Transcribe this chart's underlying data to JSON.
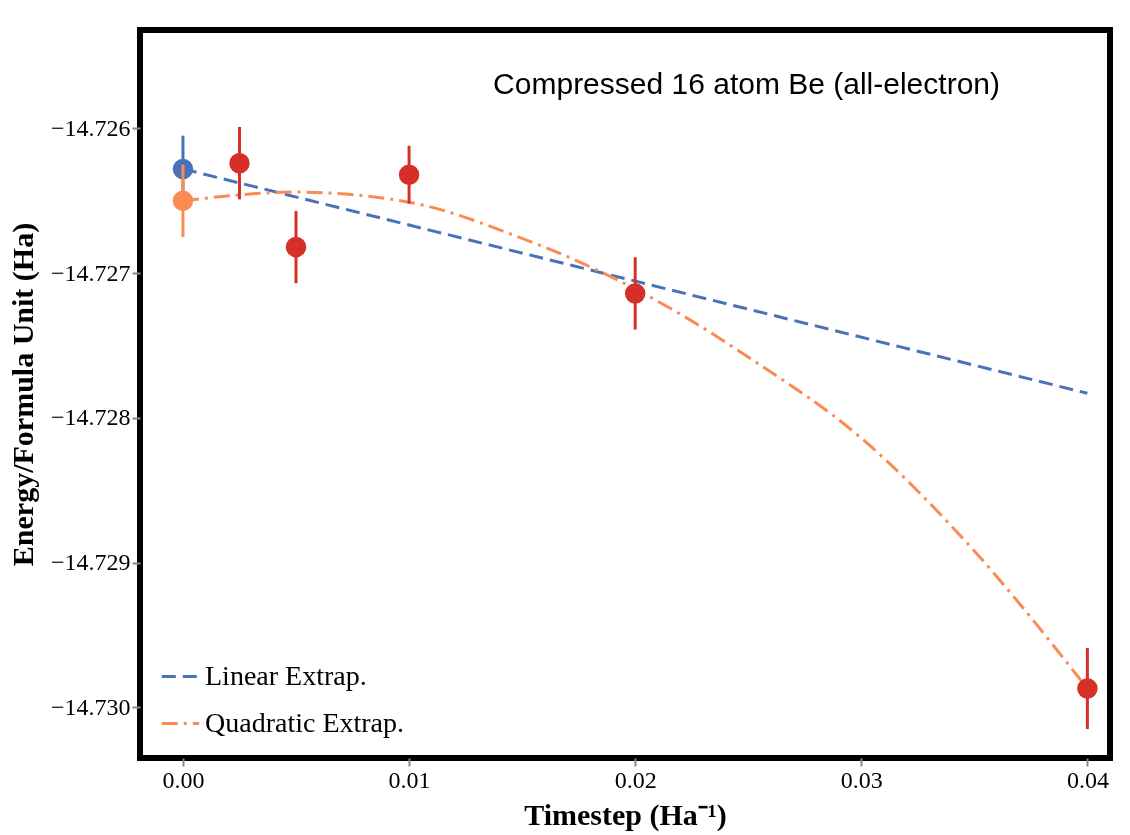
{
  "chart_data": {
    "type": "line",
    "xlabel": "Timestep (Ha⁻¹)",
    "ylabel": "Energy/Formula Unit (Ha)",
    "annotations": [
      "Compressed 16 atom Be (all-electron)"
    ],
    "xlim": [
      -0.0019,
      0.041
    ],
    "ylim": [
      -14.73035,
      -14.72532
    ],
    "xticks": [
      {
        "value": 0,
        "label": "0.00"
      },
      {
        "value": 0.01,
        "label": "0.01"
      },
      {
        "value": 0.02,
        "label": "0.02"
      },
      {
        "value": 0.03,
        "label": "0.03"
      },
      {
        "value": 0.04,
        "label": "0.04"
      }
    ],
    "yticks": [
      {
        "value": -14.73,
        "label": "−14.730"
      },
      {
        "value": -14.729,
        "label": "−14.729"
      },
      {
        "value": -14.728,
        "label": "−14.728"
      },
      {
        "value": -14.727,
        "label": "−14.727"
      },
      {
        "value": -14.726,
        "label": "−14.726"
      }
    ],
    "grid": false,
    "legend": "bottom left",
    "series": [
      {
        "name": "Linear Extrap.",
        "line_style": "dashed",
        "color": "#4a72b8",
        "x": [
          0,
          0.04
        ],
        "values": [
          -14.72628,
          -14.72783
        ]
      },
      {
        "name": "Quadratic Extrap.",
        "line_style": "dashdot",
        "color": "#f98c55",
        "x": [
          0,
          0.005,
          0.01,
          0.015,
          0.0175,
          0.0225,
          0.025,
          0.03,
          0.035,
          0.04
        ],
        "values": [
          -14.7265,
          -14.72644,
          -14.72651,
          -14.72676,
          -14.72692,
          -14.72733,
          -14.72758,
          -14.72814,
          -14.72892,
          -14.72987
        ]
      },
      {
        "type": "scatter",
        "marker": "circle",
        "color": "#d62f27",
        "x": [
          0.0025,
          0.005,
          0.01,
          0.02,
          0.04
        ],
        "values": [
          -14.72624,
          -14.72682,
          -14.72632,
          -14.72714,
          -14.72987
        ],
        "errors": [
          0.00025,
          0.00025,
          0.0002,
          0.00025,
          0.00028
        ]
      },
      {
        "type": "scatter",
        "marker": "circle",
        "color": "#4a72b8",
        "x": [
          0
        ],
        "values": [
          -14.72628
        ],
        "errors": [
          0.00023
        ]
      },
      {
        "type": "scatter",
        "marker": "circle",
        "color": "#f98c55",
        "x": [
          0
        ],
        "values": [
          -14.7265
        ],
        "errors": [
          0.00025
        ]
      }
    ]
  }
}
